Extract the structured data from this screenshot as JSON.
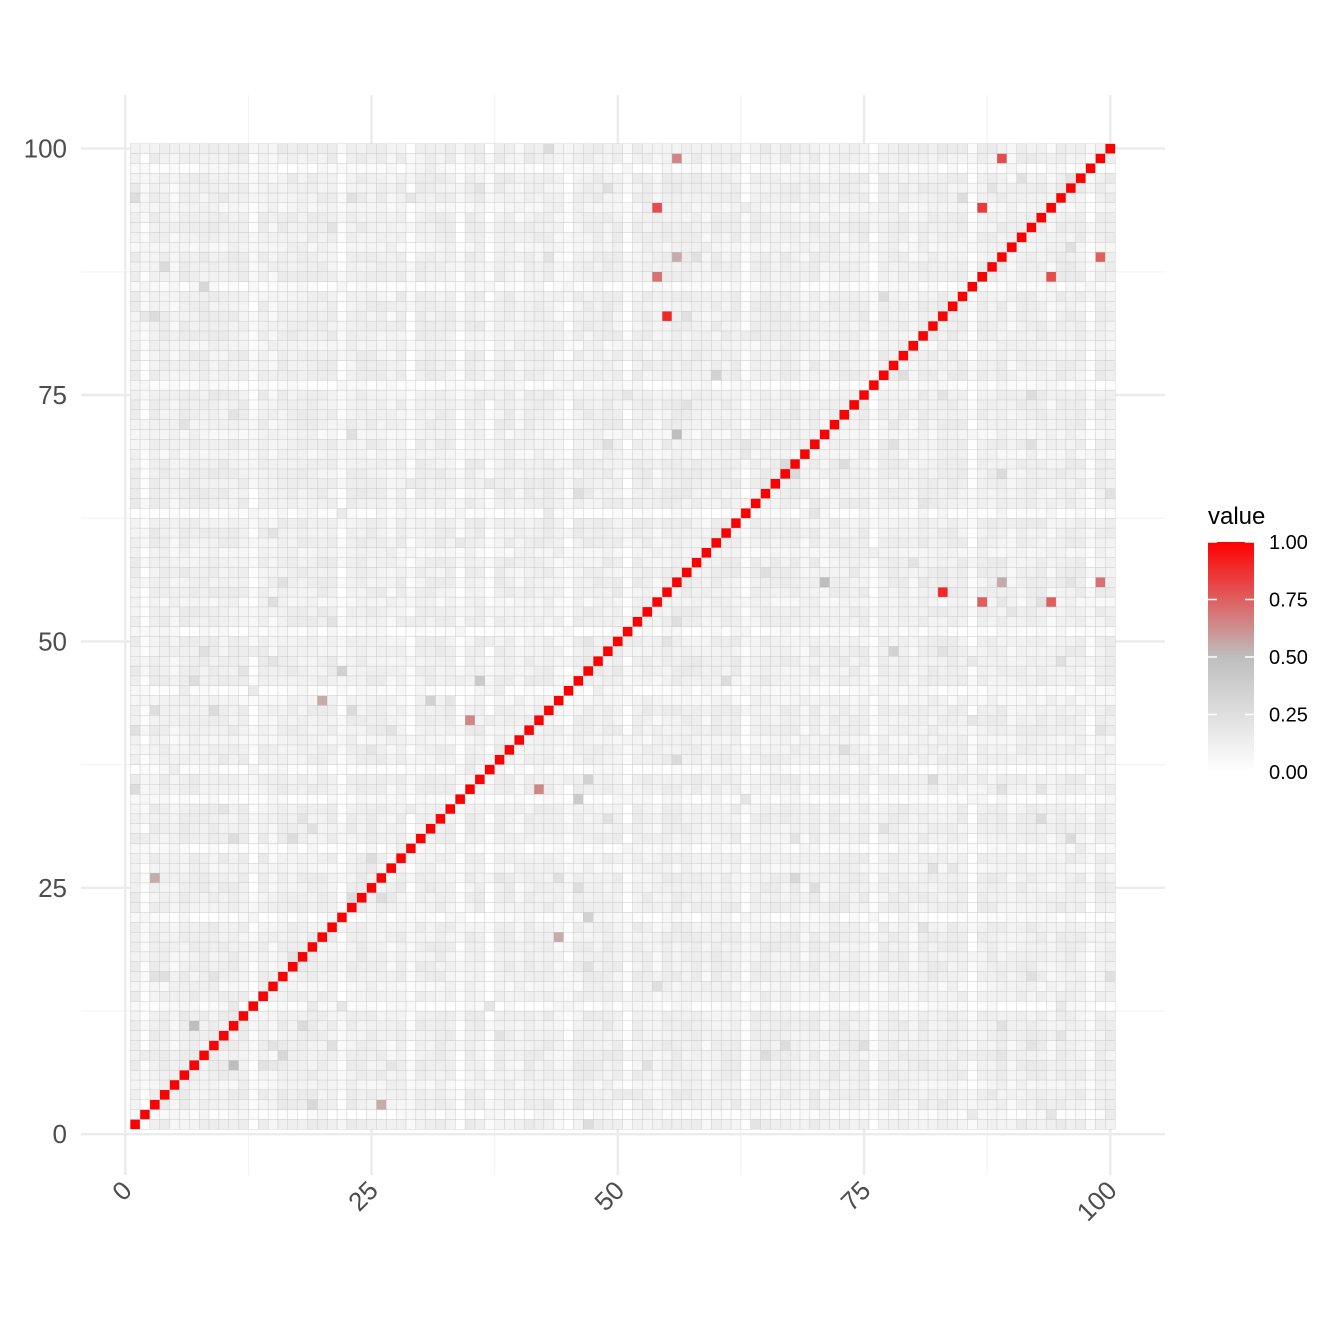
{
  "chart_data": {
    "type": "heatmap",
    "n": 100,
    "xlim": [
      0,
      100
    ],
    "ylim": [
      0,
      100
    ],
    "x_ticks": [
      "0",
      "25",
      "50",
      "75",
      "100"
    ],
    "y_ticks": [
      "0",
      "25",
      "50",
      "75",
      "100"
    ],
    "grid": true,
    "legend": {
      "title": "value",
      "position": "right",
      "ticks": [
        "0.00",
        "0.25",
        "0.50",
        "0.75",
        "1.00"
      ],
      "colors": [
        "#ffffff",
        "#bebebe",
        "#ff0000"
      ],
      "range": [
        0,
        1
      ]
    },
    "diagonal_value": 1.0,
    "background_level": 0.12,
    "dim_indices": [
      2,
      13,
      22,
      29,
      34,
      37,
      45,
      51,
      63,
      76,
      86,
      98
    ],
    "mid_indices": [
      5,
      15,
      27,
      40,
      44,
      54,
      59,
      69,
      71,
      80,
      90,
      94
    ],
    "highlights": [
      {
        "x": 56,
        "y": 99,
        "value": 0.65
      },
      {
        "x": 89,
        "y": 99,
        "value": 0.8
      },
      {
        "x": 54,
        "y": 94,
        "value": 0.8
      },
      {
        "x": 87,
        "y": 94,
        "value": 0.85
      },
      {
        "x": 56,
        "y": 89,
        "value": 0.55
      },
      {
        "x": 99,
        "y": 89,
        "value": 0.75
      },
      {
        "x": 54,
        "y": 87,
        "value": 0.7
      },
      {
        "x": 94,
        "y": 87,
        "value": 0.8
      },
      {
        "x": 55,
        "y": 83,
        "value": 0.9
      },
      {
        "x": 56,
        "y": 71,
        "value": 0.5
      },
      {
        "x": 71,
        "y": 56,
        "value": 0.5
      },
      {
        "x": 89,
        "y": 56,
        "value": 0.55
      },
      {
        "x": 99,
        "y": 56,
        "value": 0.7
      },
      {
        "x": 83,
        "y": 55,
        "value": 0.9
      },
      {
        "x": 87,
        "y": 54,
        "value": 0.75
      },
      {
        "x": 94,
        "y": 54,
        "value": 0.75
      },
      {
        "x": 20,
        "y": 44,
        "value": 0.55
      },
      {
        "x": 35,
        "y": 42,
        "value": 0.65
      },
      {
        "x": 42,
        "y": 35,
        "value": 0.65
      },
      {
        "x": 3,
        "y": 26,
        "value": 0.55
      },
      {
        "x": 44,
        "y": 20,
        "value": 0.55
      },
      {
        "x": 7,
        "y": 11,
        "value": 0.5
      },
      {
        "x": 11,
        "y": 7,
        "value": 0.5
      },
      {
        "x": 26,
        "y": 3,
        "value": 0.55
      },
      {
        "x": 22,
        "y": 47,
        "value": 0.35
      },
      {
        "x": 36,
        "y": 46,
        "value": 0.4
      },
      {
        "x": 46,
        "y": 34,
        "value": 0.4
      },
      {
        "x": 60,
        "y": 77,
        "value": 0.35
      },
      {
        "x": 31,
        "y": 44,
        "value": 0.35
      },
      {
        "x": 8,
        "y": 86,
        "value": 0.3
      },
      {
        "x": 47,
        "y": 22,
        "value": 0.35
      },
      {
        "x": 47,
        "y": 36,
        "value": 0.35
      },
      {
        "x": 78,
        "y": 49,
        "value": 0.35
      },
      {
        "x": 68,
        "y": 26,
        "value": 0.3
      },
      {
        "x": 19,
        "y": 3,
        "value": 0.3
      },
      {
        "x": 16,
        "y": 8,
        "value": 0.3
      }
    ]
  }
}
